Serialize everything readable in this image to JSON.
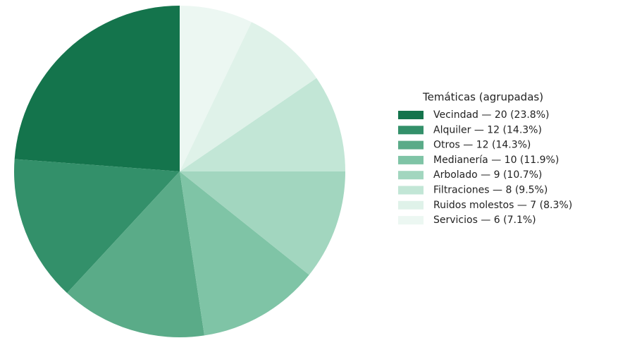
{
  "chart_data": {
    "type": "pie",
    "legend_title": "Temáticas (agrupadas)",
    "categories": [
      "Vecindad — 20 (23.8%)",
      "Alquiler — 12 (14.3%)",
      "Otros — 12 (14.3%)",
      "Medianería — 10 (11.9%)",
      "Arbolado — 9 (10.7%)",
      "Filtraciones — 8 (9.5%)",
      "Ruidos molestos — 7 (8.3%)",
      "Servicios — 6 (7.1%)"
    ],
    "values": [
      20,
      12,
      12,
      10,
      9,
      8,
      7,
      6
    ],
    "colors": [
      "#14744c",
      "#33906a",
      "#5aab88",
      "#7fc4a6",
      "#a2d6bf",
      "#c2e6d6",
      "#dff2e9",
      "#ecf7f2"
    ],
    "start": "top",
    "direction": "counterclockwise",
    "legend": "right"
  }
}
